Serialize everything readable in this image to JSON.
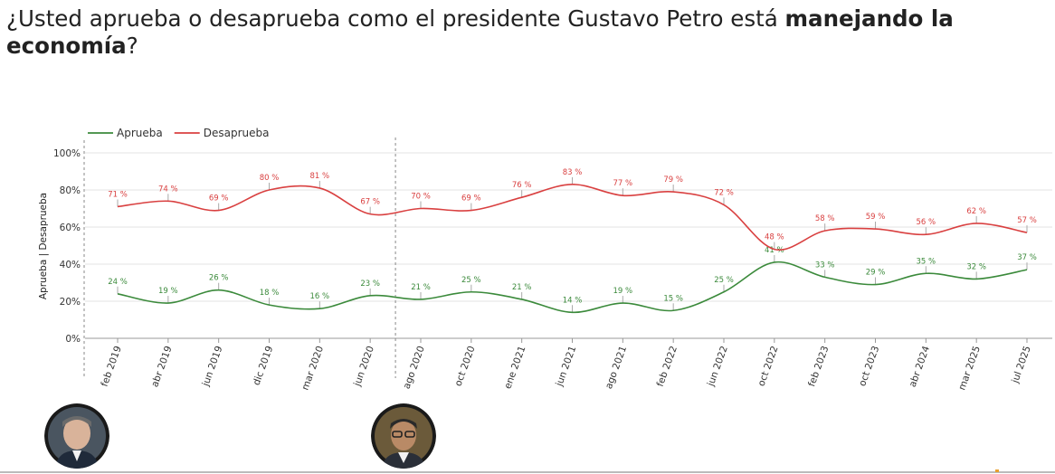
{
  "title": {
    "prefix": "¿Usted aprueba o desaprueba como el presidente Gustavo Petro está ",
    "bold": "manejando la economía",
    "suffix": "?"
  },
  "colors": {
    "aprueba": "#3b8a3b",
    "desaprueba": "#d94040"
  },
  "chart_data": {
    "type": "line",
    "title": "¿Usted aprueba o desaprueba como el presidente Gustavo Petro está manejando la economía?",
    "xlabel": "",
    "ylabel": "Aprueba | Desaprueba",
    "ylim": [
      0,
      100
    ],
    "yticks": [
      "0%",
      "20%",
      "40%",
      "60%",
      "80%",
      "100%"
    ],
    "legend_position": "top-left",
    "categories": [
      "feb 2019",
      "abr 2019",
      "jun 2019",
      "dic 2019",
      "mar 2020",
      "jun 2020",
      "ago 2020",
      "oct 2020",
      "ene 2021",
      "jun 2021",
      "ago 2021",
      "feb 2022",
      "jun 2022",
      "oct 2022",
      "feb 2023",
      "oct 2023",
      "abr 2024",
      "mar 2025",
      "jul 2025"
    ],
    "series": [
      {
        "name": "Aprueba",
        "color": "#3b8a3b",
        "values": [
          24,
          19,
          26,
          18,
          16,
          23,
          21,
          25,
          21,
          14,
          19,
          15,
          25,
          41,
          33,
          29,
          35,
          32,
          37
        ],
        "labels": [
          "24 %",
          "19 %",
          "26 %",
          "18 %",
          "16 %",
          "23 %",
          "21 %",
          "25 %",
          "21 %",
          "14 %",
          "19 %",
          "15 %",
          "25 %",
          "41 %",
          "33 %",
          "29 %",
          "35 %",
          "32 %",
          "37 %"
        ]
      },
      {
        "name": "Desaprueba",
        "color": "#d94040",
        "values": [
          71,
          74,
          69,
          80,
          81,
          67,
          70,
          69,
          76,
          83,
          77,
          79,
          72,
          48,
          58,
          59,
          56,
          62,
          57
        ],
        "labels": [
          "71 %",
          "74 %",
          "69 %",
          "80 %",
          "81 %",
          "67 %",
          "70 %",
          "69 %",
          "76 %",
          "83 %",
          "77 %",
          "79 %",
          "72 %",
          "48 %",
          "58 %",
          "59 %",
          "56 %",
          "62 %",
          "57 %"
        ]
      }
    ],
    "divider_after_category": "jun 2020"
  }
}
